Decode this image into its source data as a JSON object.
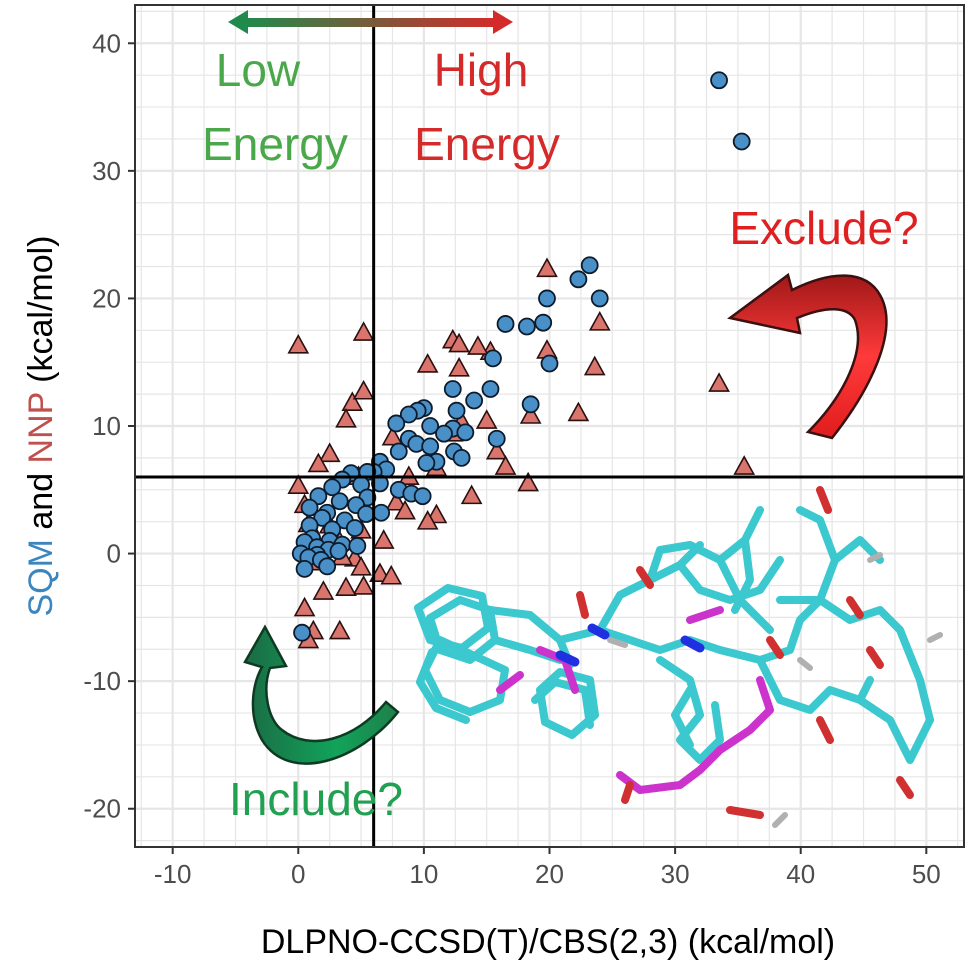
{
  "chart_data": {
    "type": "scatter",
    "xlabel": "DLPNO-CCSD(T)/CBS(2,3) (kcal/mol)",
    "ylabel": {
      "part1": "SQM",
      "part2": " and ",
      "part3": "NNP",
      "part4": " (kcal/mol)"
    },
    "xlim": [
      -13,
      53
    ],
    "ylim": [
      -23,
      43
    ],
    "xticks": [
      -10,
      0,
      10,
      20,
      30,
      40,
      50
    ],
    "yticks": [
      -20,
      -10,
      0,
      10,
      20,
      30,
      40
    ],
    "grid": true,
    "threshold": {
      "x": 6,
      "y": 6
    },
    "colors": {
      "sqm_fill": "#4a90c8",
      "nnp_fill": "#d9756c",
      "low_energy": "#4aa84a",
      "high_energy": "#d42a2a",
      "exclude": "#e02020",
      "include": "#20a050",
      "grid": "#e6e6e6"
    },
    "annotations": {
      "low_energy_line1": "Low",
      "low_energy_line2": "Energy",
      "high_energy_line1": "High",
      "high_energy_line2": "Energy",
      "exclude": "Exclude?",
      "include": "Include?"
    },
    "series": [
      {
        "name": "SQM",
        "marker": "circle",
        "points": [
          [
            33.5,
            37.1
          ],
          [
            35.3,
            32.3
          ],
          [
            23.2,
            22.6
          ],
          [
            22.3,
            21.5
          ],
          [
            24.0,
            20.0
          ],
          [
            19.8,
            20.0
          ],
          [
            16.5,
            18.0
          ],
          [
            18.2,
            17.8
          ],
          [
            19.5,
            18.1
          ],
          [
            15.5,
            15.3
          ],
          [
            20.0,
            14.9
          ],
          [
            18.5,
            11.7
          ],
          [
            15.3,
            12.9
          ],
          [
            12.3,
            12.9
          ],
          [
            14.0,
            12.0
          ],
          [
            12.6,
            11.2
          ],
          [
            10.0,
            11.4
          ],
          [
            9.5,
            11.2
          ],
          [
            8.8,
            10.9
          ],
          [
            7.8,
            10.2
          ],
          [
            10.5,
            10.0
          ],
          [
            12.3,
            9.8
          ],
          [
            13.3,
            9.5
          ],
          [
            15.8,
            9.0
          ],
          [
            11.6,
            9.4
          ],
          [
            8.8,
            9.0
          ],
          [
            9.4,
            8.6
          ],
          [
            10.5,
            8.4
          ],
          [
            12.4,
            8.0
          ],
          [
            13.0,
            7.5
          ],
          [
            11.0,
            7.2
          ],
          [
            10.2,
            7.1
          ],
          [
            8.0,
            8.0
          ],
          [
            6.5,
            7.2
          ],
          [
            7.0,
            6.6
          ],
          [
            6.0,
            6.4
          ],
          [
            5.5,
            6.4
          ],
          [
            4.2,
            6.3
          ],
          [
            3.5,
            5.8
          ],
          [
            5.0,
            5.4
          ],
          [
            6.5,
            5.5
          ],
          [
            8.0,
            5.0
          ],
          [
            9.0,
            4.7
          ],
          [
            9.9,
            4.5
          ],
          [
            2.7,
            5.2
          ],
          [
            5.5,
            4.4
          ],
          [
            1.6,
            4.5
          ],
          [
            3.3,
            4.1
          ],
          [
            4.6,
            3.8
          ],
          [
            0.9,
            3.6
          ],
          [
            2.3,
            3.2
          ],
          [
            5.4,
            3.1
          ],
          [
            6.6,
            3.2
          ],
          [
            1.9,
            2.8
          ],
          [
            3.7,
            2.6
          ],
          [
            4.5,
            2.0
          ],
          [
            0.9,
            2.2
          ],
          [
            2.7,
            1.9
          ],
          [
            1.1,
            1.2
          ],
          [
            2.5,
            1.0
          ],
          [
            3.5,
            0.7
          ],
          [
            4.7,
            0.6
          ],
          [
            0.5,
            0.9
          ],
          [
            1.5,
            0.5
          ],
          [
            2.4,
            0.3
          ],
          [
            3.2,
            0.2
          ],
          [
            1.5,
            -0.1
          ],
          [
            0.2,
            0.0
          ],
          [
            0.8,
            -0.3
          ],
          [
            1.8,
            -0.5
          ],
          [
            0.5,
            -1.2
          ],
          [
            2.3,
            -1.0
          ],
          [
            0.3,
            -6.2
          ]
        ]
      },
      {
        "name": "NNP",
        "marker": "triangle",
        "points": [
          [
            5.2,
            17.3
          ],
          [
            0.0,
            16.3
          ],
          [
            19.8,
            22.3
          ],
          [
            23.6,
            14.6
          ],
          [
            24.0,
            18.1
          ],
          [
            19.8,
            15.9
          ],
          [
            15.3,
            15.8
          ],
          [
            14.3,
            16.2
          ],
          [
            12.3,
            16.7
          ],
          [
            12.8,
            16.4
          ],
          [
            10.3,
            14.8
          ],
          [
            12.8,
            14.5
          ],
          [
            22.3,
            11.0
          ],
          [
            18.5,
            10.8
          ],
          [
            15.0,
            10.4
          ],
          [
            13.0,
            10.3
          ],
          [
            4.3,
            11.8
          ],
          [
            5.2,
            12.7
          ],
          [
            3.8,
            10.5
          ],
          [
            7.5,
            9.1
          ],
          [
            12.3,
            9.4
          ],
          [
            15.8,
            8.0
          ],
          [
            16.5,
            6.8
          ],
          [
            33.5,
            13.3
          ],
          [
            35.5,
            6.8
          ],
          [
            2.5,
            7.8
          ],
          [
            11.0,
            6.7
          ],
          [
            8.8,
            6.0
          ],
          [
            4.8,
            6.0
          ],
          [
            1.6,
            7.0
          ],
          [
            18.3,
            5.5
          ],
          [
            0.0,
            5.3
          ],
          [
            0.5,
            3.8
          ],
          [
            7.8,
            4.0
          ],
          [
            8.5,
            3.3
          ],
          [
            11.0,
            3.0
          ],
          [
            10.3,
            2.5
          ],
          [
            13.8,
            4.5
          ],
          [
            0.8,
            2.3
          ],
          [
            2.5,
            2.2
          ],
          [
            5.0,
            1.8
          ],
          [
            3.3,
            0.9
          ],
          [
            6.8,
            1.0
          ],
          [
            4.5,
            -0.4
          ],
          [
            3.5,
            -0.3
          ],
          [
            1.5,
            -0.7
          ],
          [
            5.0,
            -1.1
          ],
          [
            6.5,
            -1.6
          ],
          [
            7.4,
            -1.8
          ],
          [
            5.2,
            -2.6
          ],
          [
            3.8,
            -2.7
          ],
          [
            2.0,
            -3.0
          ],
          [
            0.5,
            -4.3
          ],
          [
            1.2,
            -6.1
          ],
          [
            0.8,
            -6.8
          ],
          [
            3.3,
            -6.1
          ]
        ]
      }
    ]
  }
}
